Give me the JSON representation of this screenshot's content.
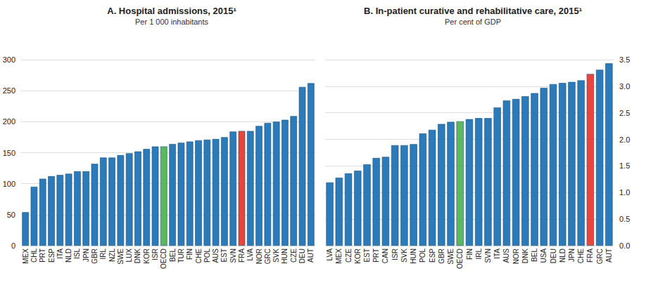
{
  "chart_data": [
    {
      "type": "bar",
      "title": "A. Hospital admissions, 2015¹",
      "subtitle": "Per 1 000 inhabitants",
      "categories": [
        "MEX",
        "CHL",
        "PRT",
        "ESP",
        "ITA",
        "NLD",
        "ISL",
        "JPN",
        "GBR",
        "IRL",
        "NZL",
        "SWE",
        "LUX",
        "DNK",
        "KOR",
        "ISR",
        "OECD",
        "BEL",
        "TUR",
        "FIN",
        "CHE",
        "POL",
        "AUS",
        "EST",
        "SVN",
        "FRA",
        "LVA",
        "NOR",
        "GRC",
        "SVK",
        "HUN",
        "CZE",
        "DEU",
        "AUT"
      ],
      "values": [
        54,
        95,
        108,
        112,
        114,
        116,
        120,
        120,
        132,
        142,
        142,
        146,
        149,
        152,
        156,
        160,
        160,
        164,
        166,
        168,
        170,
        171,
        172,
        175,
        184,
        185,
        185,
        193,
        198,
        200,
        203,
        209,
        256,
        262
      ],
      "colors": [
        "#2b7bba",
        "#2b7bba",
        "#2b7bba",
        "#2b7bba",
        "#2b7bba",
        "#2b7bba",
        "#2b7bba",
        "#2b7bba",
        "#2b7bba",
        "#2b7bba",
        "#2b7bba",
        "#2b7bba",
        "#2b7bba",
        "#2b7bba",
        "#2b7bba",
        "#2b7bba",
        "#5cb85c",
        "#2b7bba",
        "#2b7bba",
        "#2b7bba",
        "#2b7bba",
        "#2b7bba",
        "#2b7bba",
        "#2b7bba",
        "#2b7bba",
        "#e8453c",
        "#2b7bba",
        "#2b7bba",
        "#2b7bba",
        "#2b7bba",
        "#2b7bba",
        "#2b7bba",
        "#2b7bba",
        "#2b7bba"
      ],
      "ylim": [
        0,
        300
      ],
      "yticks": [
        0,
        50,
        100,
        150,
        200,
        250,
        300
      ],
      "grid": true
    },
    {
      "type": "bar",
      "title": "B. In-patient curative and rehabilitative care, 2015¹",
      "subtitle": "Per cent of GDP",
      "categories": [
        "LVA",
        "MEX",
        "CZE",
        "KOR",
        "EST",
        "PRT",
        "CAN",
        "ISR",
        "SVK",
        "HUN",
        "POL",
        "ESP",
        "GBR",
        "SWE",
        "OECD",
        "FIN",
        "IRL",
        "SVN",
        "ITA",
        "AUS",
        "NOR",
        "DNK",
        "BEL",
        "USA",
        "DEU",
        "NLD",
        "JPN",
        "CHE",
        "FRA",
        "GRC",
        "AUT"
      ],
      "values": [
        1.19,
        1.28,
        1.36,
        1.41,
        1.53,
        1.65,
        1.67,
        1.89,
        1.89,
        1.91,
        2.11,
        2.18,
        2.29,
        2.33,
        2.34,
        2.38,
        2.4,
        2.4,
        2.6,
        2.73,
        2.76,
        2.81,
        2.87,
        2.97,
        3.04,
        3.06,
        3.08,
        3.11,
        3.23,
        3.31,
        3.43
      ],
      "colors": [
        "#2b7bba",
        "#2b7bba",
        "#2b7bba",
        "#2b7bba",
        "#2b7bba",
        "#2b7bba",
        "#2b7bba",
        "#2b7bba",
        "#2b7bba",
        "#2b7bba",
        "#2b7bba",
        "#2b7bba",
        "#2b7bba",
        "#2b7bba",
        "#5cb85c",
        "#2b7bba",
        "#2b7bba",
        "#2b7bba",
        "#2b7bba",
        "#2b7bba",
        "#2b7bba",
        "#2b7bba",
        "#2b7bba",
        "#2b7bba",
        "#2b7bba",
        "#2b7bba",
        "#2b7bba",
        "#2b7bba",
        "#e8453c",
        "#2b7bba",
        "#2b7bba"
      ],
      "ylim": [
        0,
        3.5
      ],
      "yticks": [
        {
          "value": 0,
          "label": "0.0"
        },
        0.5,
        {
          "value": 1,
          "label": "1.0"
        },
        1.5,
        {
          "value": 2,
          "label": "2.0"
        },
        2.5,
        {
          "value": 3,
          "label": "3.0"
        },
        3.5
      ],
      "grid": true
    }
  ]
}
